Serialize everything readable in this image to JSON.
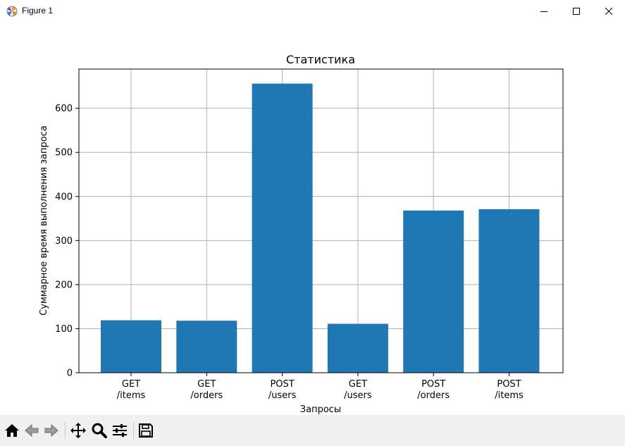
{
  "window": {
    "title": "Figure 1",
    "icons": {
      "app": "matplotlib-icon",
      "minimize": "minimize-icon",
      "maximize": "maximize-icon",
      "close": "close-icon"
    }
  },
  "toolbar": {
    "buttons": [
      {
        "name": "home-button",
        "icon": "home-icon"
      },
      {
        "name": "back-button",
        "icon": "arrow-left-icon"
      },
      {
        "name": "forward-button",
        "icon": "arrow-right-icon"
      },
      {
        "name": "pan-button",
        "icon": "move-icon"
      },
      {
        "name": "zoom-button",
        "icon": "zoom-icon"
      },
      {
        "name": "configure-subplots-button",
        "icon": "sliders-icon"
      },
      {
        "name": "save-button",
        "icon": "floppy-disk-icon"
      }
    ]
  },
  "chart_data": {
    "type": "bar",
    "title": "Статистика",
    "xlabel": "Запросы",
    "ylabel": "Суммарное время выполнения запроса",
    "categories": [
      [
        "GET",
        "/items"
      ],
      [
        "GET",
        "/orders"
      ],
      [
        "POST",
        "/users"
      ],
      [
        "GET",
        "/users"
      ],
      [
        "POST",
        "/orders"
      ],
      [
        "POST",
        "/items"
      ]
    ],
    "values": [
      119,
      118,
      656,
      111,
      368,
      371
    ],
    "yticks": [
      0,
      100,
      200,
      300,
      400,
      500,
      600
    ],
    "ylim": [
      0,
      689
    ],
    "grid": true,
    "bar_color": "#1f77b4",
    "grid_color": "#b0b0b0"
  }
}
